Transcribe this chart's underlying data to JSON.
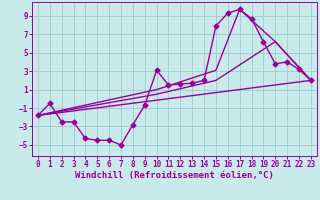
{
  "background_color": "#c8eaea",
  "grid_color": "#a0cccc",
  "line_color": "#990099",
  "marker": "D",
  "markersize": 2.5,
  "linewidth": 1.0,
  "xlabel": "Windchill (Refroidissement éolien,°C)",
  "xlabel_fontsize": 6.5,
  "tick_fontsize": 5.5,
  "xlim": [
    -0.5,
    23.5
  ],
  "ylim": [
    -6.2,
    10.5
  ],
  "yticks": [
    -5,
    -3,
    -1,
    1,
    3,
    5,
    7,
    9
  ],
  "xticks": [
    0,
    1,
    2,
    3,
    4,
    5,
    6,
    7,
    8,
    9,
    10,
    11,
    12,
    13,
    14,
    15,
    16,
    17,
    18,
    19,
    20,
    21,
    22,
    23
  ],
  "main_x": [
    0,
    1,
    2,
    3,
    4,
    5,
    6,
    7,
    8,
    9,
    10,
    11,
    12,
    13,
    14,
    15,
    16,
    17,
    18,
    19,
    20,
    21,
    22,
    23
  ],
  "main_y": [
    -1.8,
    -0.5,
    -2.5,
    -2.5,
    -4.3,
    -4.5,
    -4.5,
    -5.0,
    -2.8,
    -0.7,
    3.1,
    1.5,
    1.6,
    1.7,
    2.0,
    7.9,
    9.3,
    9.7,
    8.7,
    6.2,
    3.8,
    4.0,
    3.2,
    2.0
  ],
  "line2_x": [
    0,
    23
  ],
  "line2_y": [
    -1.8,
    2.0
  ],
  "line3_x": [
    0,
    10,
    15,
    17,
    20,
    23
  ],
  "line3_y": [
    -1.8,
    1.0,
    3.1,
    9.7,
    6.2,
    2.0
  ],
  "line4_x": [
    0,
    10,
    15,
    20,
    23
  ],
  "line4_y": [
    -1.8,
    0.5,
    2.0,
    6.2,
    2.0
  ]
}
